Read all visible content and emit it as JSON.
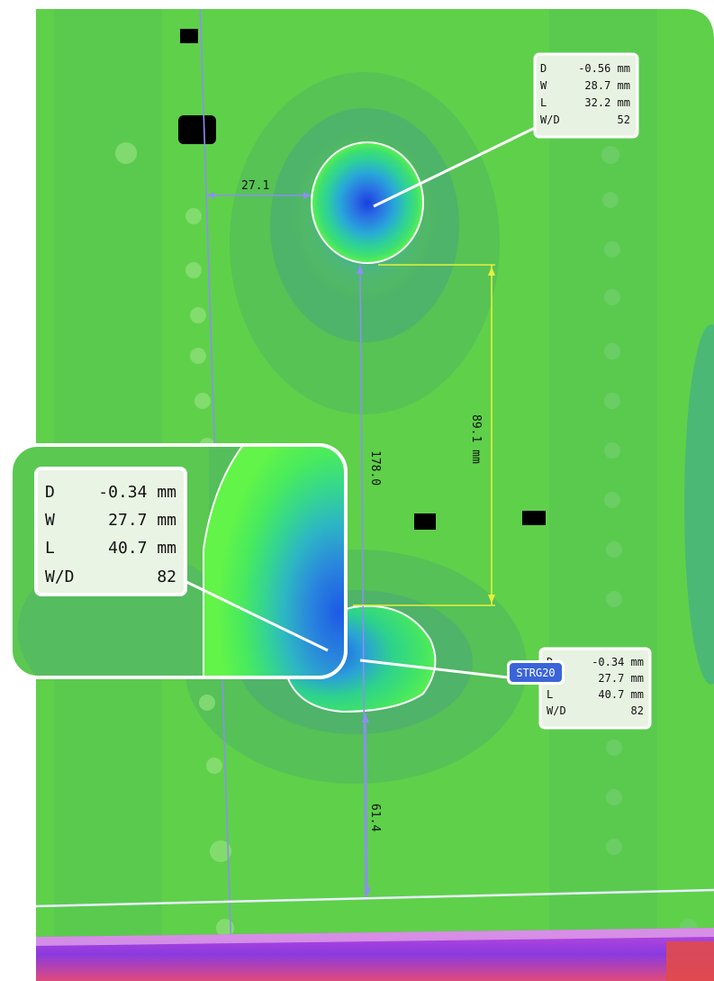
{
  "measurements": {
    "horizontal_offset": "27.1",
    "gap_between_dents": "89.1 mm",
    "center_to_center": "178.0",
    "bottom_offset": "61.4"
  },
  "stringer_tag": "STRG20",
  "dent_upper": {
    "rows": [
      {
        "key": "D",
        "value": "-0.56 mm"
      },
      {
        "key": "W",
        "value": "28.7 mm"
      },
      {
        "key": "L",
        "value": "32.2 mm"
      },
      {
        "key": "W/D",
        "value": "52"
      }
    ]
  },
  "dent_lower": {
    "rows": [
      {
        "key": "D",
        "value": "-0.34 mm"
      },
      {
        "key": "W",
        "value": "27.7 mm"
      },
      {
        "key": "L",
        "value": "40.7 mm"
      },
      {
        "key": "W/D",
        "value": "82"
      }
    ]
  },
  "dent_lower_zoom": {
    "rows": [
      {
        "key": "D",
        "value": "-0.34 mm"
      },
      {
        "key": "W",
        "value": "27.7 mm"
      },
      {
        "key": "L",
        "value": "40.7 mm"
      },
      {
        "key": "W/D",
        "value": "82"
      }
    ]
  },
  "colors": {
    "surface": "#5fd04a",
    "surface_dark": "#4fb548",
    "depression_blue": "#2a5ad8",
    "dim_line": "#8c8ff0",
    "gap_line": "#e6ef3a",
    "tag_fill": "#3a64d8"
  }
}
